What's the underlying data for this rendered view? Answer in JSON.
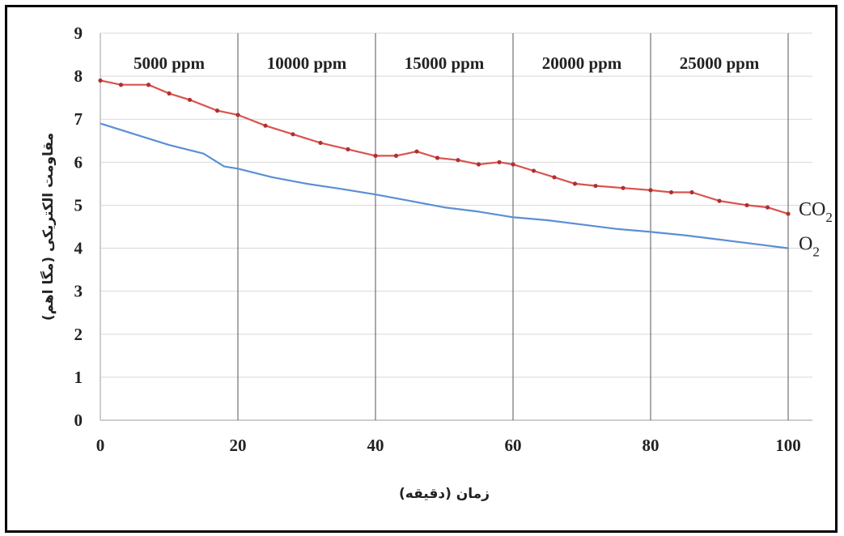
{
  "chart_data": {
    "type": "line",
    "xlabel": "زمان (دقیقه)",
    "ylabel": "مقاومت الکتریکی (مگا اهم)",
    "xlim": [
      0,
      100
    ],
    "ylim": [
      0,
      9
    ],
    "x_ticks": [
      0,
      20,
      40,
      60,
      80,
      100
    ],
    "y_ticks": [
      0,
      1,
      2,
      3,
      4,
      5,
      6,
      7,
      8,
      9
    ],
    "grid": "horizontal",
    "band_edges": [
      0,
      20,
      40,
      60,
      80,
      100
    ],
    "bands": [
      "5000 ppm",
      "10000 ppm",
      "15000 ppm",
      "20000 ppm",
      "25000 ppm"
    ],
    "series": [
      {
        "name": "CO2",
        "label_main": "CO",
        "label_sub": "2",
        "color": "#d9534f",
        "x": [
          0,
          3,
          7,
          10,
          13,
          17,
          20,
          24,
          28,
          32,
          36,
          40,
          43,
          46,
          49,
          52,
          55,
          58,
          60,
          63,
          66,
          69,
          72,
          76,
          80,
          83,
          86,
          90,
          94,
          97,
          100
        ],
        "y": [
          7.9,
          7.8,
          7.8,
          7.6,
          7.45,
          7.2,
          7.1,
          6.85,
          6.65,
          6.45,
          6.3,
          6.15,
          6.15,
          6.25,
          6.1,
          6.05,
          5.95,
          6.0,
          5.95,
          5.8,
          5.65,
          5.5,
          5.45,
          5.4,
          5.35,
          5.3,
          5.3,
          5.1,
          5.0,
          4.95,
          4.8
        ]
      },
      {
        "name": "O2",
        "label_main": "O",
        "label_sub": "2",
        "color": "#5b8fd4",
        "x": [
          0,
          5,
          10,
          15,
          18,
          20,
          25,
          30,
          35,
          40,
          45,
          50,
          55,
          60,
          65,
          70,
          75,
          80,
          85,
          90,
          95,
          100
        ],
        "y": [
          6.9,
          6.65,
          6.4,
          6.2,
          5.9,
          5.85,
          5.65,
          5.5,
          5.38,
          5.25,
          5.1,
          4.95,
          4.85,
          4.72,
          4.65,
          4.55,
          4.45,
          4.38,
          4.3,
          4.2,
          4.1,
          4.0
        ]
      }
    ]
  }
}
